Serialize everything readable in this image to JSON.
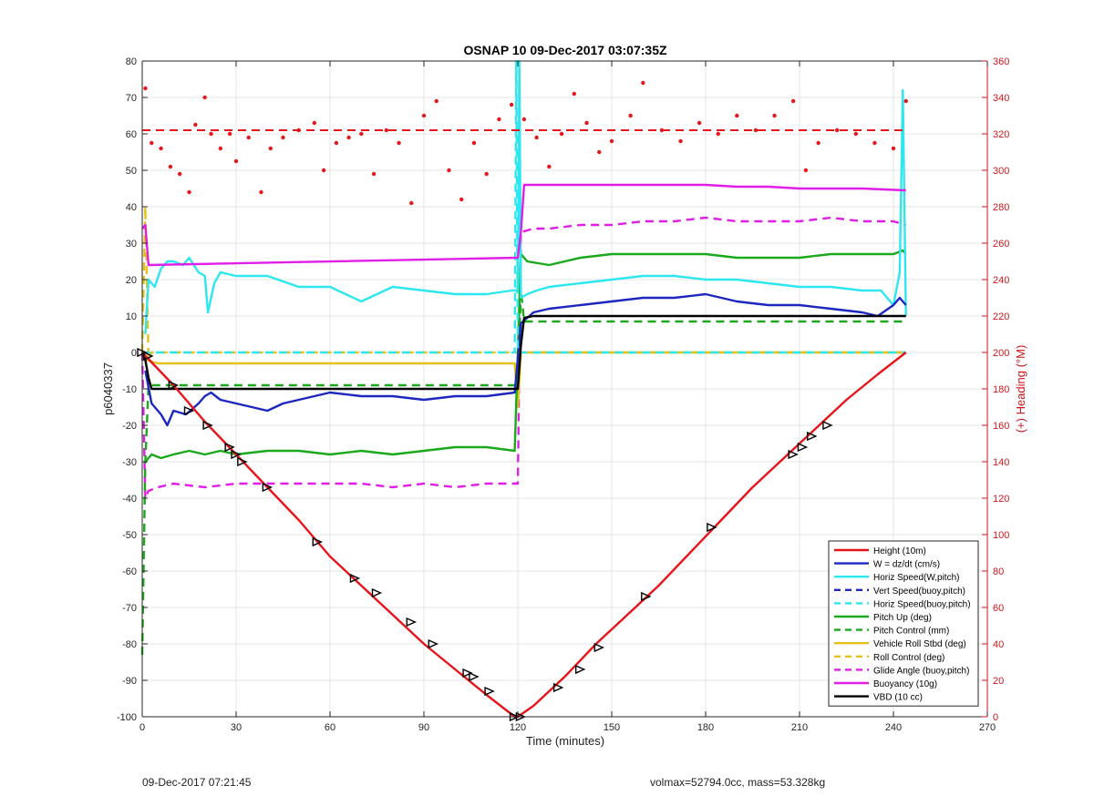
{
  "chart_data": {
    "type": "line",
    "title": "OSNAP 10 09-Dec-2017 03:07:35Z",
    "xlabel": "Time (minutes)",
    "ylabel_left": "p6040337",
    "ylabel_right": "(+) Heading (°M)",
    "xlim": [
      0,
      270
    ],
    "ylim_left": [
      -100,
      80
    ],
    "ylim_right": [
      0,
      360
    ],
    "x_ticks": [
      0,
      30,
      60,
      90,
      120,
      150,
      180,
      210,
      240,
      270
    ],
    "y_ticks_left": [
      -100,
      -90,
      -80,
      -70,
      -60,
      -50,
      -40,
      -30,
      -20,
      -10,
      0,
      10,
      20,
      30,
      40,
      50,
      60,
      70,
      80
    ],
    "y_ticks_right": [
      0,
      20,
      40,
      60,
      80,
      100,
      120,
      140,
      160,
      180,
      200,
      220,
      240,
      260,
      280,
      300,
      320,
      340,
      360
    ],
    "grid": true,
    "legend_position": "bottom-right",
    "colors": {
      "height": "#e8141b",
      "w": "#1d27c0",
      "horiz": "#2ee6ef",
      "pitch": "#19a91b",
      "roll": "#e6c11a",
      "glide": "#e01ee6",
      "buoyancy": "#e01ee6",
      "vbd": "#000000",
      "heading": "#e8141b",
      "right_axis": "#d0161c"
    },
    "series": [
      {
        "name": "Height (10m)",
        "style": "solid",
        "color": "#e8141b",
        "x": [
          0,
          10,
          20,
          30,
          40,
          50,
          60,
          70,
          80,
          90,
          100,
          110,
          119,
          120,
          125,
          135,
          145,
          155,
          165,
          175,
          185,
          195,
          205,
          215,
          225,
          235,
          244
        ],
        "y": [
          0,
          -9,
          -19,
          -28,
          -37,
          -46,
          -56,
          -64,
          -72,
          -80,
          -87,
          -94,
          -100,
          -100,
          -97,
          -89,
          -80,
          -72,
          -64,
          -55,
          -46,
          -37,
          -29,
          -21,
          -13,
          -6,
          0
        ]
      },
      {
        "name": "W = dz/dt (cm/s)",
        "style": "solid",
        "color": "#1d27c0",
        "x": [
          1,
          3,
          6,
          8,
          10,
          14,
          18,
          20,
          22,
          25,
          30,
          35,
          40,
          45,
          50,
          60,
          70,
          80,
          90,
          100,
          110,
          119,
          121,
          125,
          130,
          140,
          150,
          160,
          170,
          180,
          190,
          200,
          210,
          220,
          230,
          235,
          240,
          242,
          244
        ],
        "y": [
          -5,
          -14,
          -17,
          -20,
          -16,
          -17,
          -14,
          -12,
          -11,
          -13,
          -14,
          -15,
          -16,
          -14,
          -13,
          -11,
          -12,
          -12,
          -13,
          -12,
          -12,
          -11,
          8,
          11,
          12,
          13,
          14,
          15,
          15,
          16,
          14,
          13,
          13,
          12,
          11,
          10,
          13,
          15,
          13
        ]
      },
      {
        "name": "Horiz Speed(W,pitch)",
        "style": "solid",
        "color": "#2ee6ef",
        "x": [
          1,
          2,
          4,
          6,
          8,
          10,
          13,
          15,
          18,
          20,
          21,
          23,
          25,
          30,
          40,
          50,
          60,
          70,
          80,
          90,
          100,
          110,
          118,
          119,
          120,
          120.5,
          121,
          123,
          126,
          130,
          140,
          150,
          160,
          170,
          180,
          190,
          200,
          210,
          220,
          230,
          236,
          240,
          242,
          243,
          244
        ],
        "y": [
          5,
          20,
          18,
          23,
          25,
          25,
          24,
          26,
          22,
          21,
          11,
          19,
          22,
          21,
          21,
          18,
          18,
          14,
          18,
          17,
          16,
          16,
          17,
          17,
          17,
          80,
          15,
          16,
          17,
          18,
          19,
          20,
          21,
          21,
          20,
          20,
          19,
          18,
          18,
          17,
          17,
          13,
          22,
          72,
          10
        ]
      },
      {
        "name": "Vert Speed(buoy,pitch)",
        "style": "dashed",
        "color": "#1d27c0",
        "x": [],
        "y": []
      },
      {
        "name": "Horiz Speed(buoy,pitch)",
        "style": "dashed",
        "color": "#2ee6ef",
        "x": [
          0,
          118,
          119,
          119.5,
          120,
          121,
          121.5,
          244
        ],
        "y": [
          0,
          0,
          0,
          80,
          0,
          0,
          0,
          0
        ]
      },
      {
        "name": "Pitch Up (deg)",
        "style": "solid",
        "color": "#19a91b",
        "x": [
          1,
          3,
          6,
          10,
          15,
          20,
          25,
          30,
          40,
          50,
          60,
          70,
          80,
          90,
          100,
          110,
          119,
          121,
          123,
          130,
          140,
          150,
          160,
          170,
          180,
          190,
          200,
          210,
          220,
          230,
          240,
          243,
          244
        ],
        "y": [
          -30,
          -28,
          -29,
          -28,
          -27,
          -28,
          -27,
          -28,
          -27,
          -27,
          -28,
          -27,
          -28,
          -27,
          -26,
          -26,
          -27,
          27,
          25,
          24,
          26,
          27,
          27,
          27,
          27,
          26,
          26,
          26,
          27,
          27,
          27,
          28,
          27
        ]
      },
      {
        "name": "Pitch Control (mm)",
        "style": "dashed",
        "color": "#19a91b",
        "x": [
          0,
          1,
          2,
          5,
          119,
          119.5,
          120,
          121,
          122,
          244
        ],
        "y": [
          -83,
          -30,
          -9,
          -9,
          -9,
          -9,
          -9,
          17,
          8.5,
          8.5
        ]
      },
      {
        "name": "Vehicle Roll Stbd (deg)",
        "style": "solid",
        "color": "#e6c11a",
        "x": [
          1,
          5,
          10,
          20,
          30,
          40,
          50,
          60,
          70,
          80,
          90,
          100,
          110,
          119,
          120,
          121,
          125,
          130,
          140,
          150,
          160,
          170,
          180,
          190,
          200,
          210,
          220,
          230,
          240,
          244
        ],
        "y": [
          -2,
          -3,
          -3,
          -3,
          -3,
          -3,
          -3,
          -3,
          -3,
          -3,
          -3,
          -3,
          -3,
          -3,
          -15,
          0,
          0,
          0,
          0,
          0,
          0,
          0,
          0,
          0,
          0,
          0,
          0,
          0,
          0,
          0
        ]
      },
      {
        "name": "Roll Control (deg)",
        "style": "dashed",
        "color": "#e6c11a",
        "x": [
          0,
          1,
          2,
          3,
          10,
          20,
          30,
          40,
          50,
          60,
          70,
          80,
          90,
          100,
          110,
          119,
          121,
          130,
          140,
          150,
          160,
          170,
          180,
          190,
          200,
          210,
          220,
          230,
          240,
          244
        ],
        "y": [
          0,
          40,
          -2,
          0,
          0,
          0,
          0,
          0,
          0,
          0,
          0,
          0,
          0,
          0,
          0,
          0,
          0,
          0,
          0,
          0,
          0,
          0,
          0,
          0,
          0,
          0,
          0,
          0,
          0,
          0
        ]
      },
      {
        "name": "Glide Angle (buoy,pitch)",
        "style": "dashed",
        "color": "#e01ee6",
        "x": [
          0,
          1,
          2,
          5,
          10,
          20,
          30,
          40,
          50,
          60,
          70,
          80,
          90,
          100,
          110,
          119,
          120,
          121,
          125,
          130,
          140,
          150,
          160,
          170,
          180,
          190,
          200,
          210,
          220,
          230,
          240,
          244
        ],
        "y": [
          0,
          -40,
          -38,
          -37,
          -36,
          -37,
          -36,
          -36,
          -36,
          -36,
          -36,
          -37,
          -36,
          -37,
          -36,
          -36,
          -36,
          33,
          34,
          34,
          35,
          35,
          36,
          36,
          37,
          36,
          36,
          36,
          37,
          36,
          36,
          35
        ]
      },
      {
        "name": "Buoyancy (10g)",
        "style": "solid",
        "color": "#e01ee6",
        "x": [
          0,
          1,
          2,
          120,
          121,
          122,
          130,
          140,
          150,
          160,
          170,
          180,
          190,
          200,
          210,
          220,
          230,
          244
        ],
        "y": [
          34,
          35,
          24,
          26,
          33,
          46,
          46,
          46,
          46,
          46,
          46,
          46,
          45.5,
          45.5,
          45,
          45,
          45,
          44.5
        ]
      },
      {
        "name": "VBD (10 cc)",
        "style": "solid",
        "color": "#000000",
        "x": [
          0,
          1,
          2,
          3,
          5,
          119,
          120,
          121,
          122,
          125,
          140,
          160,
          180,
          200,
          220,
          244
        ],
        "y": [
          0,
          -2,
          -7,
          -10,
          -10,
          -10,
          -10,
          2,
          9.5,
          10,
          10,
          10,
          10,
          10,
          10,
          10
        ]
      }
    ],
    "heading_series": {
      "axis": "right",
      "style": "dotted-markers",
      "color": "#e8141b",
      "target": 322,
      "x": [
        1,
        3,
        6,
        9,
        12,
        15,
        17,
        20,
        22,
        25,
        28,
        30,
        34,
        38,
        41,
        45,
        50,
        55,
        58,
        62,
        66,
        70,
        74,
        78,
        82,
        86,
        90,
        94,
        98,
        102,
        106,
        110,
        114,
        118,
        122,
        126,
        130,
        134,
        138,
        142,
        146,
        150,
        156,
        160,
        166,
        172,
        178,
        184,
        190,
        196,
        202,
        208,
        212,
        216,
        222,
        228,
        234,
        240,
        244
      ],
      "y": [
        345,
        315,
        312,
        302,
        298,
        288,
        325,
        340,
        320,
        312,
        320,
        305,
        318,
        288,
        312,
        318,
        322,
        326,
        300,
        315,
        318,
        320,
        298,
        322,
        315,
        282,
        330,
        338,
        300,
        284,
        315,
        298,
        328,
        336,
        328,
        318,
        302,
        320,
        342,
        326,
        310,
        316,
        330,
        348,
        322,
        316,
        326,
        320,
        330,
        322,
        330,
        338,
        300,
        315,
        322,
        320,
        315,
        312,
        338
      ]
    },
    "markers": {
      "x": [
        0,
        2,
        10,
        15,
        21,
        28,
        30,
        32,
        40,
        56,
        68,
        75,
        86,
        93,
        104,
        106,
        111,
        119,
        121,
        133,
        140,
        146,
        161,
        182,
        208,
        211,
        214,
        219
      ],
      "y": [
        0,
        -1,
        -9,
        -16,
        -20,
        -26,
        -28,
        -30,
        -37,
        -52,
        -62,
        -66,
        -74,
        -80,
        -88,
        -89,
        -93,
        -100,
        -100,
        -92,
        -87,
        -81,
        -67,
        -48,
        -28,
        -26,
        -23,
        -20
      ]
    }
  },
  "footer": {
    "left": "09-Dec-2017 07:21:45",
    "right": "volmax=52794.0cc, mass=53.328kg"
  }
}
